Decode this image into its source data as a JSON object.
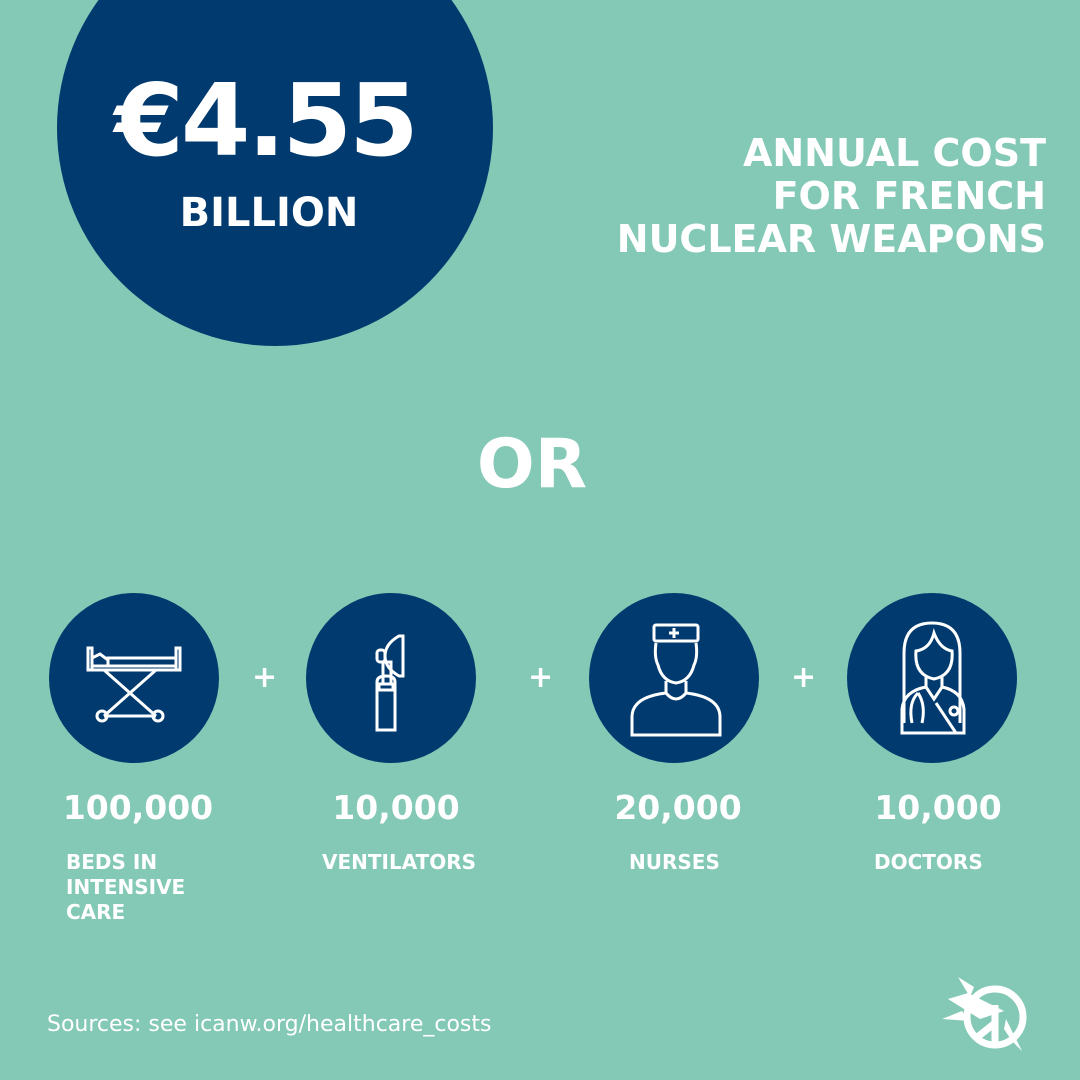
{
  "headline": {
    "amount": "€4.55",
    "unit": "BILLION"
  },
  "title": {
    "lines": [
      "ANNUAL COST",
      "FOR FRENCH",
      "NUCLEAR WEAPONS"
    ]
  },
  "separator": "OR",
  "items": [
    {
      "icon": "hospital-bed-icon",
      "value": "100,000",
      "label_lines": [
        "BEDS IN",
        "INTENSIVE",
        "CARE"
      ]
    },
    {
      "icon": "ventilator-icon",
      "value": "10,000",
      "label_lines": [
        "VENTILATORS"
      ]
    },
    {
      "icon": "nurse-icon",
      "value": "20,000",
      "label_lines": [
        "NURSES"
      ]
    },
    {
      "icon": "doctor-icon",
      "value": "10,000",
      "label_lines": [
        "DOCTORS"
      ]
    }
  ],
  "plus": "+",
  "footer": {
    "prefix": "Sources: see ",
    "link": "icanw.org/healthcare_costs"
  },
  "logo": "ican-logo",
  "colors": {
    "background": "#84c8b6",
    "navy": "#003a6e",
    "text": "#ffffff"
  }
}
